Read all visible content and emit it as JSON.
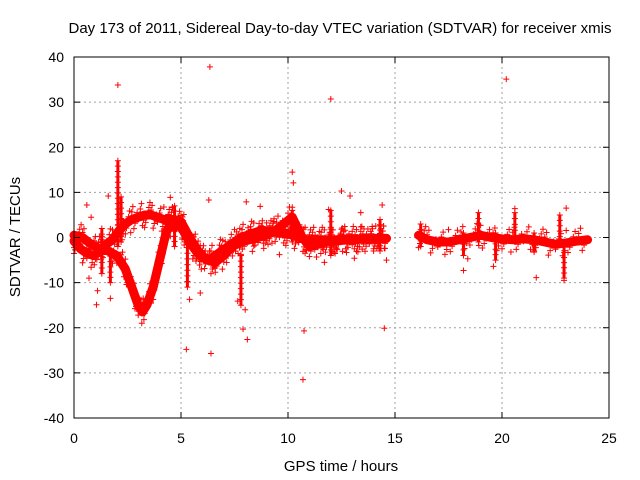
{
  "chart_data": {
    "type": "scatter",
    "title": "Day 173 of 2011, Sidereal Day-to-day VTEC variation (SDTVAR) for receiver xmis",
    "xlabel": "GPS time / hours",
    "ylabel": "SDTVAR / TECUs",
    "xlim": [
      0,
      25
    ],
    "ylim": [
      -40,
      40
    ],
    "xticks": [
      0,
      5,
      10,
      15,
      20,
      25
    ],
    "yticks": [
      -40,
      -30,
      -20,
      -10,
      0,
      10,
      20,
      30,
      40
    ],
    "grid": true,
    "marker": "+",
    "color": "#ff0000",
    "outliers": [
      {
        "x": 2.05,
        "y": 33.8
      },
      {
        "x": 6.35,
        "y": 37.8
      },
      {
        "x": 12.0,
        "y": 30.7
      },
      {
        "x": 20.2,
        "y": 35.1
      },
      {
        "x": 10.7,
        "y": -31.5
      },
      {
        "x": 6.4,
        "y": -25.7
      },
      {
        "x": 5.25,
        "y": -24.8
      },
      {
        "x": 8.1,
        "y": -22.6
      },
      {
        "x": 7.9,
        "y": -20.3
      },
      {
        "x": 10.75,
        "y": -20.7
      },
      {
        "x": 14.5,
        "y": -20.1
      },
      {
        "x": 10.2,
        "y": 14.5
      },
      {
        "x": 10.25,
        "y": 12.1
      },
      {
        "x": 12.5,
        "y": 10.3
      },
      {
        "x": 12.9,
        "y": 9.2
      },
      {
        "x": 4.5,
        "y": 8.9
      },
      {
        "x": 6.3,
        "y": 8.3
      },
      {
        "x": 8.05,
        "y": 7.9
      },
      {
        "x": 8.7,
        "y": 6.9
      },
      {
        "x": 14.4,
        "y": 7.2
      },
      {
        "x": 20.6,
        "y": 6.4
      },
      {
        "x": 23.0,
        "y": 6.5
      },
      {
        "x": 1.6,
        "y": 9.2
      },
      {
        "x": 0.6,
        "y": 7.2
      },
      {
        "x": 0.8,
        "y": 4.5
      },
      {
        "x": 1.1,
        "y": -11.8
      },
      {
        "x": 1.05,
        "y": -14.9
      },
      {
        "x": 1.7,
        "y": -13.5
      },
      {
        "x": 0.7,
        "y": -9.0
      },
      {
        "x": 5.4,
        "y": -13.7
      },
      {
        "x": 5.9,
        "y": -12.3
      },
      {
        "x": 7.65,
        "y": -14.1
      },
      {
        "x": 8.0,
        "y": -16.0
      },
      {
        "x": 9.6,
        "y": -3.8
      },
      {
        "x": 11.7,
        "y": -5.5
      },
      {
        "x": 13.1,
        "y": -4.6
      },
      {
        "x": 14.6,
        "y": -5.0
      },
      {
        "x": 18.2,
        "y": -7.3
      },
      {
        "x": 18.4,
        "y": -4.7
      },
      {
        "x": 19.6,
        "y": -6.4
      },
      {
        "x": 21.6,
        "y": -8.9
      },
      {
        "x": 22.9,
        "y": -9.5
      },
      {
        "x": 11.9,
        "y": 6.2
      },
      {
        "x": 13.4,
        "y": 5.5
      }
    ],
    "bands": [
      {
        "x": [
          0.0,
          0.3,
          0.6,
          0.9,
          1.2,
          1.5,
          1.8,
          2.1,
          2.4,
          2.7,
          3.0,
          3.3,
          3.6,
          3.9,
          4.2,
          4.5,
          4.8,
          5.1,
          5.4,
          5.7,
          6.0,
          6.3,
          6.6,
          6.9,
          7.2,
          7.5,
          7.8,
          8.1,
          8.4,
          8.7,
          9.0,
          9.3,
          9.6,
          9.9,
          10.2,
          10.5,
          10.8,
          11.1,
          11.4,
          11.7,
          12.0,
          12.3,
          12.6,
          12.9,
          13.2,
          13.5,
          13.8,
          14.1,
          14.4,
          14.6
        ],
        "y": [
          -0.8,
          -2.5,
          -3.5,
          -4.0,
          -3.0,
          -1.5,
          -0.5,
          1.5,
          3.0,
          4.0,
          4.5,
          5.0,
          5.0,
          4.5,
          4.0,
          4.0,
          3.5,
          1.5,
          -1.0,
          -3.0,
          -4.5,
          -5.0,
          -4.0,
          -3.0,
          -2.0,
          -1.0,
          0.0,
          0.5,
          1.0,
          1.5,
          1.5,
          1.5,
          1.0,
          1.0,
          0.5,
          0.0,
          -0.5,
          -0.5,
          -0.5,
          -0.5,
          -0.5,
          -0.5,
          -0.3,
          -0.3,
          -0.3,
          -0.3,
          -0.3,
          -0.2,
          -0.2,
          -0.2
        ]
      },
      {
        "x": [
          0.0,
          0.4,
          0.8,
          1.2,
          1.6,
          2.0,
          2.4,
          2.7,
          3.0,
          3.2,
          3.4,
          3.7,
          4.0,
          4.3,
          4.6,
          5.0,
          5.4,
          5.8,
          6.2,
          6.6,
          7.0,
          7.4,
          7.8,
          8.2,
          8.6,
          9.0,
          9.4,
          9.8,
          10.2,
          10.6,
          11.0,
          11.4,
          11.8,
          12.2,
          12.6,
          13.0,
          13.4,
          13.8,
          14.2,
          14.6
        ],
        "y": [
          0.5,
          0.0,
          -1.5,
          -2.5,
          -3.0,
          -4.0,
          -7.0,
          -11.0,
          -15.0,
          -16.5,
          -15.0,
          -11.0,
          -5.0,
          1.0,
          4.0,
          3.5,
          0.0,
          -3.0,
          -5.0,
          -5.5,
          -4.0,
          -2.0,
          -1.0,
          -0.5,
          0.0,
          0.5,
          1.5,
          3.0,
          4.5,
          0.5,
          -2.0,
          -1.5,
          -1.0,
          -0.8,
          -0.6,
          -0.5,
          -0.4,
          -0.3,
          -0.3,
          -0.2
        ]
      },
      {
        "x": [
          16.1,
          16.5,
          17.0,
          17.5,
          18.0,
          18.5,
          19.0,
          19.5,
          20.0,
          20.5,
          21.0,
          21.5,
          22.0,
          22.5,
          23.0,
          23.5,
          24.0
        ],
        "y": [
          0.5,
          -0.5,
          -1.0,
          -1.0,
          -0.5,
          0.0,
          0.5,
          0.0,
          -0.3,
          -0.5,
          -0.3,
          -0.5,
          -1.0,
          -1.5,
          -1.2,
          -0.8,
          -0.5
        ]
      }
    ],
    "spikes": [
      {
        "x": 2.05,
        "ymin": -2.0,
        "ymax": 17.0
      },
      {
        "x": 2.2,
        "ymin": -1.0,
        "ymax": 9.0
      },
      {
        "x": 1.3,
        "ymin": -8.0,
        "ymax": 2.0
      },
      {
        "x": 1.7,
        "ymin": -10.0,
        "ymax": -3.0
      },
      {
        "x": 4.7,
        "ymin": -2.0,
        "ymax": 7.0
      },
      {
        "x": 5.3,
        "ymin": -11.0,
        "ymax": -1.0
      },
      {
        "x": 7.8,
        "ymin": -15.0,
        "ymax": -4.0
      },
      {
        "x": 10.2,
        "ymin": -1.0,
        "ymax": 6.0
      },
      {
        "x": 12.0,
        "ymin": -4.0,
        "ymax": 6.0
      },
      {
        "x": 14.3,
        "ymin": -3.0,
        "ymax": 4.0
      },
      {
        "x": 16.2,
        "ymin": -2.0,
        "ymax": 3.0
      },
      {
        "x": 18.2,
        "ymin": -4.0,
        "ymax": 1.0
      },
      {
        "x": 18.9,
        "ymin": -1.0,
        "ymax": 5.5
      },
      {
        "x": 19.7,
        "ymin": -5.0,
        "ymax": 1.0
      },
      {
        "x": 20.6,
        "ymin": -1.0,
        "ymax": 5.5
      },
      {
        "x": 21.5,
        "ymin": -3.0,
        "ymax": 1.0
      },
      {
        "x": 22.7,
        "ymin": -1.0,
        "ymax": 5.0
      },
      {
        "x": 22.9,
        "ymin": -9.0,
        "ymax": -1.0
      }
    ],
    "colors": {
      "series": "#ff0000",
      "grid": "#a0a0a0",
      "axis": "#000000"
    }
  }
}
